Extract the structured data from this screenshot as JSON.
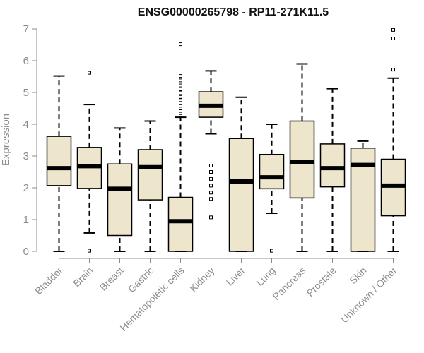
{
  "chart_data": {
    "type": "boxplot",
    "title": "ENSG00000265798 - RP11-271K11.5",
    "xlabel": "",
    "ylabel": "Expression",
    "ylim": [
      0,
      7
    ],
    "yticks": [
      0,
      1,
      2,
      3,
      4,
      5,
      6,
      7
    ],
    "colors": {
      "box_fill": "#ede6cc",
      "stroke": "#000000",
      "axis": "#8c8c8c"
    },
    "categories": [
      "Bladder",
      "Brain",
      "Breast",
      "Gastric",
      "Hematopoietic cells",
      "Kidney",
      "Liver",
      "Lung",
      "Pancreas",
      "Prostate",
      "Skin",
      "Unknown / Other"
    ],
    "boxes": [
      {
        "name": "Bladder",
        "whisker_low": 0,
        "q1": 2.07,
        "median": 2.62,
        "q3": 3.62,
        "whisker_high": 5.52,
        "outliers": []
      },
      {
        "name": "Brain",
        "whisker_low": 0.58,
        "q1": 1.98,
        "median": 2.68,
        "q3": 3.27,
        "whisker_high": 4.62,
        "outliers": [
          0.02,
          5.62
        ]
      },
      {
        "name": "Breast",
        "whisker_low": 0,
        "q1": 0.5,
        "median": 1.97,
        "q3": 2.75,
        "whisker_high": 3.88,
        "outliers": []
      },
      {
        "name": "Gastric",
        "whisker_low": 0,
        "q1": 1.62,
        "median": 2.65,
        "q3": 3.2,
        "whisker_high": 4.1,
        "outliers": []
      },
      {
        "name": "Hematopoietic cells",
        "whisker_low": 0,
        "q1": 0,
        "median": 0.95,
        "q3": 1.7,
        "whisker_high": 4.22,
        "outliers": [
          4.28,
          4.35,
          4.42,
          4.5,
          4.58,
          4.66,
          4.76,
          4.86,
          4.98,
          5.1,
          5.22,
          5.38,
          5.52,
          6.52
        ]
      },
      {
        "name": "Kidney",
        "whisker_low": 3.7,
        "q1": 4.22,
        "median": 4.58,
        "q3": 5.02,
        "whisker_high": 5.68,
        "outliers": [
          1.07,
          1.65,
          1.85,
          2.07,
          2.28,
          2.5,
          2.7
        ]
      },
      {
        "name": "Liver",
        "whisker_low": 0,
        "q1": 0,
        "median": 2.2,
        "q3": 3.55,
        "whisker_high": 4.85,
        "outliers": []
      },
      {
        "name": "Lung",
        "whisker_low": 1.2,
        "q1": 1.97,
        "median": 2.33,
        "q3": 3.05,
        "whisker_high": 4.0,
        "outliers": [
          0.02
        ]
      },
      {
        "name": "Pancreas",
        "whisker_low": 0,
        "q1": 1.68,
        "median": 2.82,
        "q3": 4.1,
        "whisker_high": 5.9,
        "outliers": []
      },
      {
        "name": "Prostate",
        "whisker_low": 0,
        "q1": 2.03,
        "median": 2.62,
        "q3": 3.38,
        "whisker_high": 5.12,
        "outliers": []
      },
      {
        "name": "Skin",
        "whisker_low": 0,
        "q1": 0,
        "median": 2.72,
        "q3": 3.25,
        "whisker_high": 3.47,
        "outliers": []
      },
      {
        "name": "Unknown / Other",
        "whisker_low": 0,
        "q1": 1.12,
        "median": 2.07,
        "q3": 2.9,
        "whisker_high": 5.45,
        "outliers": [
          5.72,
          6.7,
          6.97
        ]
      }
    ]
  }
}
